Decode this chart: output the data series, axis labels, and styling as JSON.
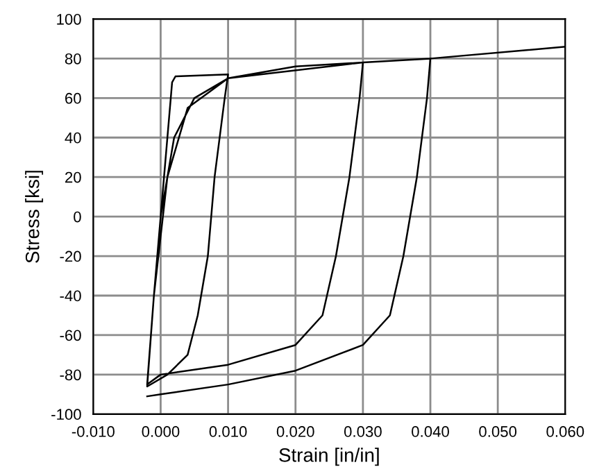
{
  "chart_data": {
    "type": "line",
    "xlabel": "Strain [in/in]",
    "ylabel": "Stress [ksi]",
    "xlim": [
      -0.01,
      0.06
    ],
    "ylim": [
      -100,
      100
    ],
    "xticks": [
      {
        "value": -0.01,
        "label": "-0.010"
      },
      {
        "value": 0,
        "label": "0.000"
      },
      {
        "value": 0.01,
        "label": "0.010"
      },
      {
        "value": 0.02,
        "label": "0.020"
      },
      {
        "value": 0.03,
        "label": "0.030"
      },
      {
        "value": 0.04,
        "label": "0.040"
      },
      {
        "value": 0.05,
        "label": "0.050"
      },
      {
        "value": 0.06,
        "label": "0.060"
      }
    ],
    "yticks": [
      -100,
      -80,
      -60,
      -40,
      -20,
      0,
      20,
      40,
      60,
      80,
      100
    ],
    "grid": true,
    "line_style": "solid",
    "marker": "none",
    "series": [
      {
        "color": "#000000",
        "x": [
          0,
          0.0017,
          0.0022,
          0.01,
          0.0095,
          0.008,
          0.007,
          0.0055,
          0.004,
          0.001,
          -0.002,
          -0.001,
          0.0,
          0.002,
          0.005,
          0.01,
          0.02,
          0.03,
          0.0295,
          0.028,
          0.026,
          0.024,
          0.02,
          0.01,
          0.0,
          -0.002,
          -0.001,
          0.001,
          0.004,
          0.01,
          0.03,
          0.04,
          0.06
        ],
        "values": [
          0,
          68,
          71,
          72,
          60,
          20,
          -20,
          -50,
          -70,
          -80,
          -86,
          -40,
          0,
          40,
          60,
          70,
          76,
          78,
          60,
          20,
          -20,
          -50,
          -65,
          -75,
          -80,
          -85,
          -40,
          20,
          55,
          70,
          78,
          80,
          86
        ]
      },
      {
        "color": "#000000",
        "x": [
          0.04,
          0.0395,
          0.038,
          0.036,
          0.034,
          0.03,
          0.02,
          0.01,
          0.0,
          -0.002
        ],
        "values": [
          80,
          60,
          20,
          -20,
          -50,
          -65,
          -78,
          -85,
          -90,
          -91
        ]
      }
    ]
  }
}
